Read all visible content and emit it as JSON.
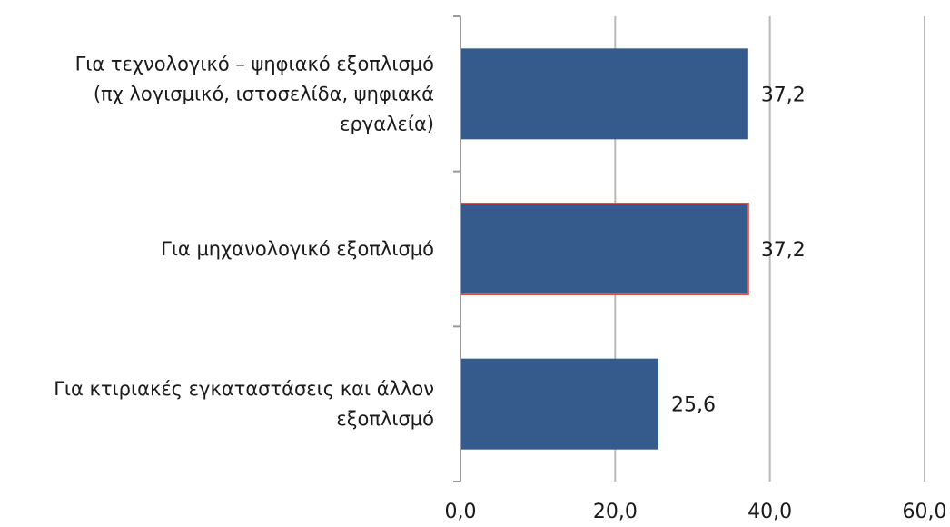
{
  "chart_data": {
    "type": "bar",
    "orientation": "horizontal",
    "categories": [
      [
        "Για τεχνολογικό – ψηφιακό εξοπλισμό",
        "(πχ λογισμικό, ιστοσελίδα, ψηφιακά",
        "εργαλεία)"
      ],
      [
        "Για μηχανολογικό εξοπλισμό"
      ],
      [
        "Για κτιριακές εγκαταστάσεις και άλλον",
        "εξοπλισμό"
      ]
    ],
    "values": [
      37.2,
      37.2,
      25.6
    ],
    "value_labels": [
      "37,2",
      "37,2",
      "25,6"
    ],
    "xlim": [
      0,
      60
    ],
    "x_ticks": [
      0,
      20,
      40,
      60
    ],
    "x_tick_labels": [
      "0,0",
      "20,0",
      "40,0",
      "60,0"
    ],
    "grid": true,
    "title": "",
    "xlabel": "",
    "ylabel": "",
    "colors": {
      "bar_fill": "#355a8c",
      "highlight_outline": "#d9534f",
      "gridline": "#b9b9b9"
    },
    "highlighted_index": 1
  }
}
